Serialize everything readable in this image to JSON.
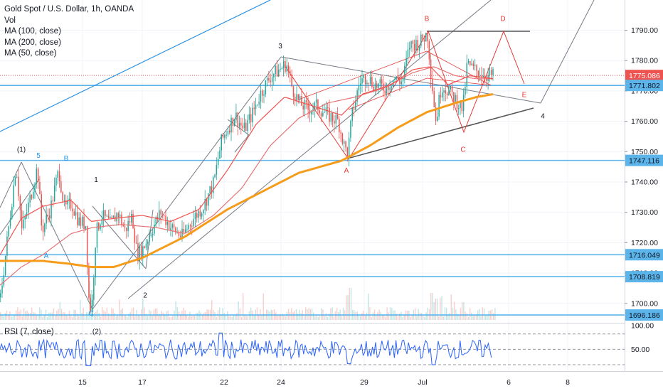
{
  "header": {
    "title": "Gold Spot / U.S. Dollar, 1h, OANDA",
    "indicators": [
      "Vol",
      "MA (100, close)",
      "MA (200, close)",
      "MA (50, close)"
    ]
  },
  "rsi": {
    "label": "RSI (7, close)",
    "ticks": [
      "100.00",
      "50.00"
    ]
  },
  "colors": {
    "up": "#26a69a",
    "down": "#ef5350",
    "ma50": "#ef5350",
    "ma100": "#e57373",
    "ma200": "#f59c1a",
    "hline": "#5bb4ea",
    "current": "#ef5350",
    "trend": "#787b86",
    "wave_red": "#e53935",
    "wave_blue": "#2196f3",
    "rsi": "#2962ff"
  },
  "chart_data": {
    "type": "candlestick",
    "title": "Gold Spot / U.S. Dollar, 1h, OANDA",
    "y_ticks": [
      1700,
      1710,
      1720,
      1730,
      1740,
      1750,
      1760,
      1770,
      1780,
      1790
    ],
    "y_tick_labels": [
      "1700.00",
      "1710.00",
      "1720.00",
      "1730.00",
      "1740.00",
      "1750.00",
      "1760.00",
      "1770.00",
      "1780.00",
      "1790.00"
    ],
    "x_ticks": [
      "15",
      "17",
      "22",
      "24",
      "29",
      "Jul",
      "6",
      "8"
    ],
    "price_labels": [
      {
        "value": 1775.086,
        "text": "1775.086",
        "kind": "current"
      },
      {
        "value": 1771.802,
        "text": "1771.802",
        "kind": "level"
      },
      {
        "value": 1747.116,
        "text": "1747.116",
        "kind": "level"
      },
      {
        "value": 1716.049,
        "text": "1716.049",
        "kind": "level"
      },
      {
        "value": 1708.819,
        "text": "1708.819",
        "kind": "level"
      },
      {
        "value": 1696.186,
        "text": "1696.186",
        "kind": "level"
      }
    ],
    "horizontal_levels": [
      1771.802,
      1747.116,
      1716.049,
      1708.819,
      1696.186
    ],
    "current_price": 1775.086,
    "series_keypoints": [
      [
        0,
        1702
      ],
      [
        10,
        1722
      ],
      [
        22,
        1746
      ],
      [
        30,
        1724
      ],
      [
        40,
        1733
      ],
      [
        52,
        1745
      ],
      [
        58,
        1724
      ],
      [
        70,
        1731
      ],
      [
        82,
        1744
      ],
      [
        90,
        1731
      ],
      [
        100,
        1733
      ],
      [
        110,
        1727
      ],
      [
        120,
        1726
      ],
      [
        124,
        1702
      ],
      [
        128,
        1697
      ],
      [
        134,
        1723
      ],
      [
        142,
        1729
      ],
      [
        155,
        1726
      ],
      [
        165,
        1730
      ],
      [
        175,
        1724
      ],
      [
        185,
        1729
      ],
      [
        192,
        1716
      ],
      [
        200,
        1718
      ],
      [
        212,
        1724
      ],
      [
        225,
        1730
      ],
      [
        240,
        1725
      ],
      [
        255,
        1722
      ],
      [
        268,
        1727
      ],
      [
        285,
        1732
      ],
      [
        300,
        1740
      ],
      [
        310,
        1753
      ],
      [
        320,
        1758
      ],
      [
        330,
        1762
      ],
      [
        342,
        1757
      ],
      [
        355,
        1763
      ],
      [
        365,
        1769
      ],
      [
        380,
        1775
      ],
      [
        392,
        1777
      ],
      [
        402,
        1779
      ],
      [
        410,
        1771
      ],
      [
        420,
        1766
      ],
      [
        432,
        1764
      ],
      [
        445,
        1765
      ],
      [
        460,
        1762
      ],
      [
        475,
        1760
      ],
      [
        483,
        1752
      ],
      [
        488,
        1749
      ],
      [
        494,
        1762
      ],
      [
        505,
        1773
      ],
      [
        515,
        1775
      ],
      [
        525,
        1772
      ],
      [
        540,
        1771
      ],
      [
        553,
        1774
      ],
      [
        565,
        1773
      ],
      [
        575,
        1785
      ],
      [
        590,
        1786
      ],
      [
        600,
        1789
      ],
      [
        605,
        1776
      ],
      [
        612,
        1760
      ],
      [
        620,
        1772
      ],
      [
        630,
        1770
      ],
      [
        640,
        1767
      ],
      [
        650,
        1764
      ],
      [
        656,
        1779
      ],
      [
        665,
        1777
      ],
      [
        675,
        1776
      ],
      [
        685,
        1775
      ],
      [
        692,
        1775
      ]
    ],
    "ma200_keypoints": [
      [
        0,
        1714
      ],
      [
        60,
        1714
      ],
      [
        100,
        1713
      ],
      [
        128,
        1712
      ],
      [
        160,
        1712
      ],
      [
        200,
        1715
      ],
      [
        260,
        1722
      ],
      [
        320,
        1731
      ],
      [
        370,
        1737
      ],
      [
        420,
        1743
      ],
      [
        480,
        1747
      ],
      [
        520,
        1752
      ],
      [
        560,
        1758
      ],
      [
        600,
        1763
      ],
      [
        640,
        1766
      ],
      [
        670,
        1768
      ],
      [
        695,
        1769
      ]
    ],
    "ma100_keypoints": [
      [
        0,
        1706
      ],
      [
        30,
        1712
      ],
      [
        60,
        1716
      ],
      [
        100,
        1723
      ],
      [
        130,
        1725
      ],
      [
        170,
        1726
      ],
      [
        220,
        1725
      ],
      [
        260,
        1723
      ],
      [
        300,
        1729
      ],
      [
        340,
        1738
      ],
      [
        380,
        1752
      ],
      [
        420,
        1761
      ],
      [
        460,
        1766
      ],
      [
        500,
        1768
      ],
      [
        540,
        1771
      ],
      [
        580,
        1776
      ],
      [
        610,
        1778
      ],
      [
        640,
        1775
      ],
      [
        670,
        1774
      ],
      [
        695,
        1774
      ]
    ],
    "ma50_keypoints": [
      [
        0,
        1716
      ],
      [
        30,
        1728
      ],
      [
        60,
        1732
      ],
      [
        100,
        1734
      ],
      [
        128,
        1727
      ],
      [
        160,
        1728
      ],
      [
        200,
        1729
      ],
      [
        240,
        1727
      ],
      [
        280,
        1731
      ],
      [
        320,
        1744
      ],
      [
        360,
        1759
      ],
      [
        400,
        1768
      ],
      [
        440,
        1765
      ],
      [
        480,
        1762
      ],
      [
        510,
        1769
      ],
      [
        550,
        1772
      ],
      [
        580,
        1777
      ],
      [
        605,
        1778
      ],
      [
        630,
        1772
      ],
      [
        660,
        1775
      ],
      [
        695,
        1774
      ]
    ],
    "wave_labels": [
      {
        "text": "(1)",
        "x": 30,
        "y": 1750,
        "color": "label"
      },
      {
        "text": "5",
        "x": 54,
        "y": 1748,
        "color": "blue"
      },
      {
        "text": "B",
        "x": 93,
        "y": 1747,
        "color": "blue"
      },
      {
        "text": "1",
        "x": 135,
        "y": 1740,
        "color": "label"
      },
      {
        "text": "A",
        "x": 65,
        "y": 1715,
        "color": "blue"
      },
      {
        "text": "C",
        "x": 128,
        "y": 1696,
        "color": "blue"
      },
      {
        "text": "(2)",
        "x": 136,
        "y": 1690,
        "color": "label"
      },
      {
        "text": "2",
        "x": 204,
        "y": 1702,
        "color": "label"
      },
      {
        "text": "3",
        "x": 394,
        "y": 1784,
        "color": "label"
      },
      {
        "text": "A",
        "x": 487,
        "y": 1743,
        "color": "red"
      },
      {
        "text": "B",
        "x": 600,
        "y": 1793,
        "color": "red"
      },
      {
        "text": "C",
        "x": 651,
        "y": 1750,
        "color": "red"
      },
      {
        "text": "D",
        "x": 707,
        "y": 1793,
        "color": "red"
      },
      {
        "text": "E",
        "x": 737,
        "y": 1768,
        "color": "red"
      },
      {
        "text": "4",
        "x": 763,
        "y": 1761,
        "color": "label"
      }
    ],
    "rsi_ticks": [
      100,
      50
    ],
    "rsi_levels": [
      80,
      50,
      20
    ]
  }
}
